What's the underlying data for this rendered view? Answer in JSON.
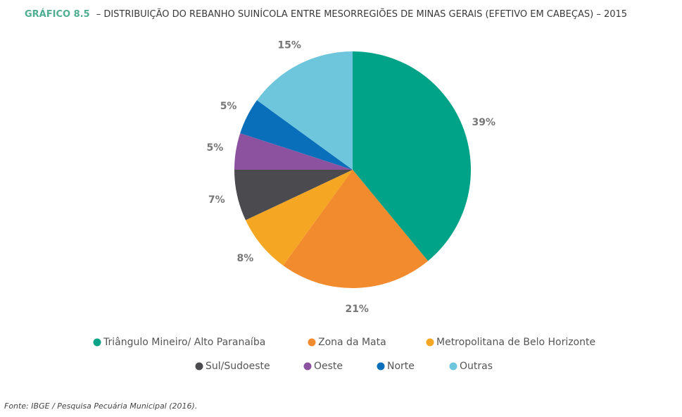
{
  "chart_data": {
    "type": "pie",
    "title_prefix": "GRÁFICO 8.5",
    "title": "– DISTRIBUIÇÃO DO REBANHO SUINÍCOLA ENTRE MESORREGIÕES DE MINAS GERAIS (EFETIVO EM CABEÇAS) – 2015",
    "categories": [
      "Triângulo Mineiro/ Alto Paranaíba",
      "Zona da Mata",
      "Metropolitana de Belo Horizonte",
      "Sul/Sudoeste",
      "Oeste",
      "Norte",
      "Outras"
    ],
    "values": [
      39,
      21,
      8,
      7,
      5,
      5,
      15
    ],
    "value_labels": [
      "39%",
      "21%",
      "8%",
      "7%",
      "5%",
      "5%",
      "15%"
    ],
    "colors": [
      "#00a387",
      "#f28a2e",
      "#f5a623",
      "#4a4a4f",
      "#8c52a0",
      "#0a6fba",
      "#6ec6dd"
    ],
    "source": "Fonte: IBGE / Pesquisa Pecuária Municipal (2016)."
  }
}
